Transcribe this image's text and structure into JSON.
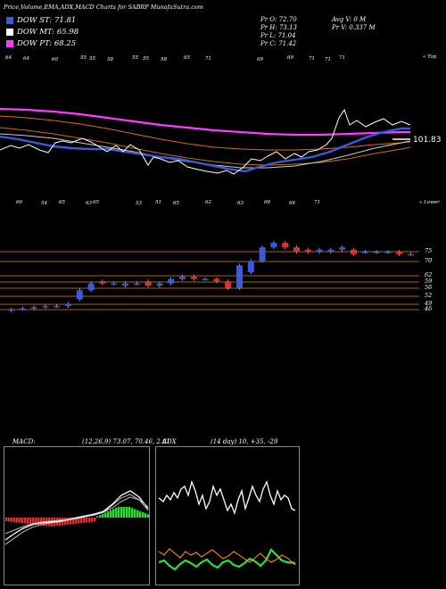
{
  "header": {
    "title": "Price,Volume,EMA,ADX,MACD Charts for SABRP MunafaSutra.com"
  },
  "legend": [
    {
      "label": "DOW ST: 71.81",
      "color": "#3a5bd9"
    },
    {
      "label": "DOW MT: 65.98",
      "color": "#ffffff"
    },
    {
      "label": "DOW PT: 68.25",
      "color": "#ff3cff"
    }
  ],
  "ohlc": {
    "open": "Pr O: 72.70",
    "high": "Pr H: 73.13",
    "low": "Pr L: 71.04",
    "close": "Pr C: 71.42",
    "avg_volume": "Avg V: 0 M",
    "volume": "Pr V: 0.337 M"
  },
  "price_panel": {
    "label_top_right": "« Top",
    "top_ticks": [
      "64",
      "64",
      "60",
      "55",
      "55",
      "58",
      "55",
      "55",
      "58",
      "65",
      "71",
      "69",
      "69",
      "71",
      "71",
      "71"
    ],
    "last_price_label": "101.83"
  },
  "range_panel": {
    "label_top_right": "« Lower",
    "top_ticks": [
      "66",
      "54",
      "65",
      "63",
      "65",
      "53",
      "51",
      "65",
      "62",
      "63",
      "68",
      "66",
      "71"
    ],
    "levels": [
      "75",
      "70",
      "62",
      "59",
      "56",
      "52",
      "49",
      "46"
    ]
  },
  "macd": {
    "label": "MACD:",
    "params": "(12,26,9) 73.07, 70.46, 2.61"
  },
  "adx": {
    "label": "ADX",
    "params": "(14 day) 10, +35, -29"
  },
  "colors": {
    "ema_short": "#3a5bd9",
    "ema_long": "#ff3cff",
    "up": "#3a5bd9",
    "down": "#e03030",
    "macd_pos": "#2ee02e",
    "macd_neg": "#e03030",
    "adx_plus": "#ff9a1a",
    "adx_minus": "#33dd33"
  },
  "chart_data": [
    {
      "type": "line",
      "series": [
        {
          "name": "DOW ST",
          "values": [
            63,
            62,
            61,
            60,
            60,
            59,
            59,
            58,
            58,
            57,
            57,
            57,
            58,
            58,
            59,
            60,
            62,
            64,
            66,
            68,
            70,
            71.81
          ]
        },
        {
          "name": "DOW MT",
          "values": [
            62,
            61,
            61,
            60,
            59,
            59,
            58,
            58,
            57,
            57,
            57,
            57,
            57,
            58,
            58,
            59,
            60,
            61,
            62,
            63,
            64,
            65.98
          ]
        },
        {
          "name": "DOW PT",
          "values": [
            74,
            73.5,
            73,
            72.5,
            72,
            71.5,
            71,
            70.5,
            70,
            69.8,
            69.5,
            69.2,
            69,
            68.8,
            68.6,
            68.5,
            68.4,
            68.3,
            68.3,
            68.25,
            68.25,
            68.25
          ]
        }
      ]
    },
    {
      "type": "bar",
      "categories": [
        "1",
        "2",
        "3",
        "4",
        "5",
        "6",
        "7",
        "8",
        "9",
        "10",
        "11",
        "12",
        "13",
        "14",
        "15",
        "16",
        "17",
        "18",
        "19",
        "20",
        "21",
        "22",
        "23",
        "24",
        "25",
        "26",
        "27",
        "28",
        "29",
        "30",
        "31",
        "32",
        "33",
        "34",
        "35",
        "36"
      ],
      "series": [
        {
          "name": "open",
          "values": [
            46,
            47,
            47,
            47.5,
            48,
            48,
            51,
            55,
            59,
            58,
            57,
            58,
            59,
            57,
            58,
            60,
            61,
            60,
            60,
            59,
            56,
            63,
            68,
            74,
            76,
            74,
            73,
            72,
            72,
            73,
            73,
            72,
            72,
            72,
            72,
            71
          ]
        },
        {
          "name": "close",
          "values": [
            46.5,
            47,
            47.5,
            48,
            48,
            49,
            55,
            58,
            58,
            58,
            58,
            58,
            57,
            58,
            60,
            61,
            60,
            60,
            59,
            56,
            66,
            68,
            74,
            76,
            74,
            72,
            72,
            73,
            73,
            74,
            71,
            72,
            72,
            72,
            71,
            71
          ]
        }
      ]
    },
    {
      "type": "line",
      "series": [
        {
          "name": "MACD",
          "values": [
            -2,
            -2.2,
            -2.5,
            -2.8,
            -3,
            -3.2,
            -3,
            -2.8,
            -2.6,
            -2.3,
            -2,
            -1.7,
            -1.3,
            -1,
            -0.5,
            0,
            0.6,
            1.2,
            2,
            2.5,
            3,
            2.61
          ]
        }
      ]
    },
    {
      "type": "line",
      "series": [
        {
          "name": "ADX",
          "values": [
            10,
            12,
            14,
            12,
            11,
            13,
            15,
            12,
            10,
            12,
            13,
            12,
            11,
            10,
            12,
            11,
            10,
            12,
            13,
            11,
            10,
            10
          ]
        },
        {
          "name": "+DI",
          "values": [
            30,
            32,
            28,
            26,
            30,
            33,
            35,
            31,
            28,
            30,
            29,
            27,
            30,
            32,
            29,
            31,
            33,
            30,
            28,
            32,
            35,
            35
          ]
        },
        {
          "name": "-DI",
          "values": [
            22,
            20,
            24,
            26,
            23,
            21,
            20,
            24,
            27,
            25,
            23,
            26,
            24,
            22,
            25,
            23,
            22,
            26,
            28,
            27,
            30,
            29
          ]
        }
      ]
    }
  ]
}
